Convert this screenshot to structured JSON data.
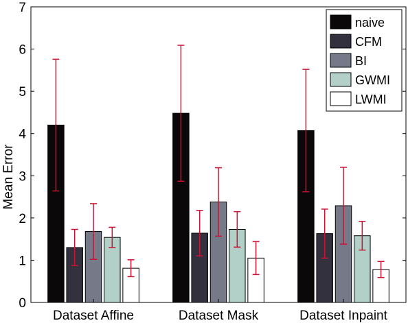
{
  "chart_data": {
    "type": "bar",
    "title": "",
    "xlabel": "",
    "ylabel": "Mean Error",
    "ylim": [
      0,
      7
    ],
    "yticks": [
      0,
      1,
      2,
      3,
      4,
      5,
      6,
      7
    ],
    "grid": false,
    "legend_position": "top-right",
    "categories": [
      "Dataset Affine",
      "Dataset Mask",
      "Dataset Inpaint"
    ],
    "error_bar_color": "#cc1133",
    "series": [
      {
        "name": "naive",
        "color": "#0a0808",
        "values": [
          4.2,
          4.48,
          4.07
        ],
        "error": [
          1.56,
          1.61,
          1.45
        ]
      },
      {
        "name": "CFM",
        "color": "#34313f",
        "values": [
          1.3,
          1.64,
          1.63
        ],
        "error": [
          0.43,
          0.54,
          0.58
        ]
      },
      {
        "name": "BI",
        "color": "#767a88",
        "values": [
          1.68,
          2.38,
          2.29
        ],
        "error": [
          0.66,
          0.81,
          0.91
        ]
      },
      {
        "name": "GWMI",
        "color": "#b2cfc8",
        "values": [
          1.54,
          1.73,
          1.58
        ],
        "error": [
          0.24,
          0.42,
          0.34
        ]
      },
      {
        "name": "LWMI",
        "color": "#ffffff",
        "values": [
          0.81,
          1.05,
          0.78
        ],
        "error": [
          0.2,
          0.39,
          0.19
        ]
      }
    ]
  }
}
